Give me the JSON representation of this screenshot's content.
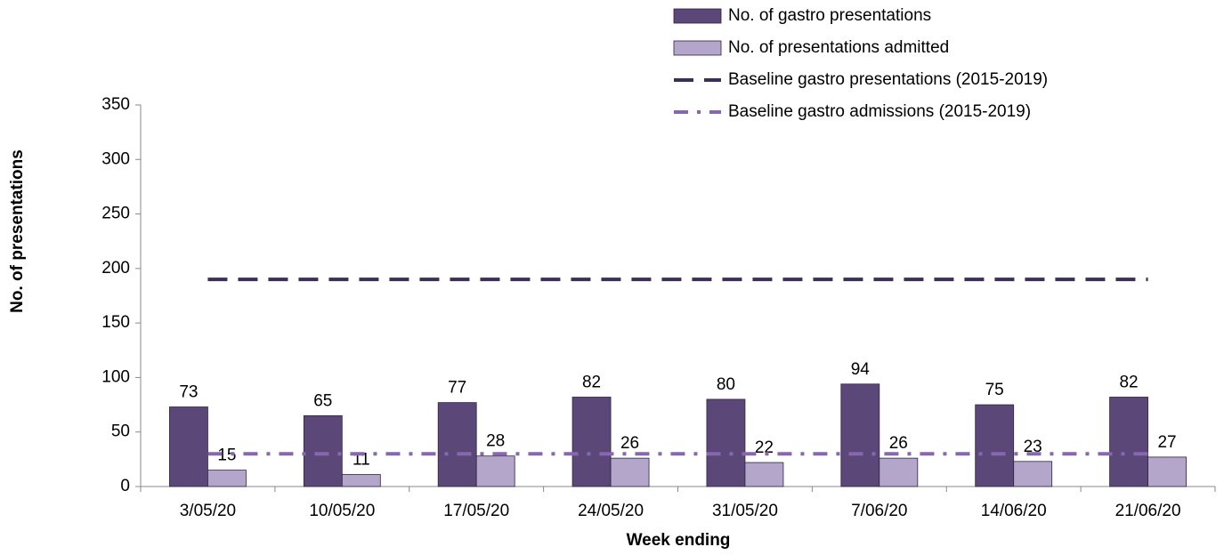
{
  "chart_data": {
    "type": "bar",
    "x_label": "Week ending",
    "y_label": "No. of presentations",
    "categories": [
      "3/05/20",
      "10/05/20",
      "17/05/20",
      "24/05/20",
      "31/05/20",
      "7/06/20",
      "14/06/20",
      "21/06/20"
    ],
    "series": [
      {
        "name": "No. of gastro presentations",
        "type": "bar",
        "color": "#5c4878",
        "values": [
          73,
          65,
          77,
          82,
          80,
          94,
          75,
          82
        ]
      },
      {
        "name": "No. of presentations admitted",
        "type": "bar",
        "color": "#b4a5ca",
        "values": [
          15,
          11,
          28,
          26,
          22,
          26,
          23,
          27
        ]
      },
      {
        "name": "Baseline gastro presentations (2015-2019)",
        "type": "line",
        "style": "dashed",
        "color": "#3c2f54",
        "values": [
          190,
          190,
          190,
          190,
          190,
          190,
          190,
          190
        ]
      },
      {
        "name": "Baseline gastro admissions (2015-2019)",
        "type": "line",
        "style": "dashdot",
        "color": "#8767ad",
        "values": [
          30,
          30,
          30,
          30,
          30,
          30,
          30,
          30
        ]
      }
    ],
    "ylim": [
      0,
      350
    ],
    "yticks": [
      0,
      50,
      100,
      150,
      200,
      250,
      300,
      350
    ],
    "grid": false,
    "data_labels": true,
    "legend": "top-right"
  }
}
